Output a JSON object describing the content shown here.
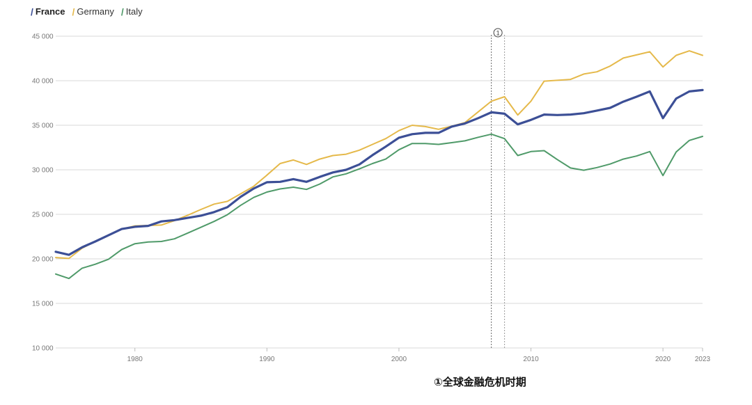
{
  "legend": [
    {
      "name": "France",
      "color": "#3c4f96"
    },
    {
      "name": "Germany",
      "color": "#e5b94a"
    },
    {
      "name": "Italy",
      "color": "#4f9a69"
    }
  ],
  "annotation_note": "①全球金融危机时期",
  "chart_data": {
    "type": "line",
    "title": "",
    "xlabel": "",
    "ylabel": "",
    "ylim": [
      10000,
      45000
    ],
    "xlim": [
      1974,
      2023
    ],
    "yticks": [
      {
        "value": 45000,
        "label": "45 000"
      },
      {
        "value": 40000,
        "label": "40 000"
      },
      {
        "value": 35000,
        "label": "35 000"
      },
      {
        "value": 30000,
        "label": "30 000"
      },
      {
        "value": 25000,
        "label": "25 000"
      },
      {
        "value": 20000,
        "label": "20 000"
      },
      {
        "value": 15000,
        "label": "15 000"
      },
      {
        "value": 10000,
        "label": "10 000"
      }
    ],
    "xticks": [
      {
        "value": 1980,
        "label": "1980"
      },
      {
        "value": 1990,
        "label": "1990"
      },
      {
        "value": 2000,
        "label": "2000"
      },
      {
        "value": 2010,
        "label": "2010"
      },
      {
        "value": 2020,
        "label": "2020"
      },
      {
        "value": 2023,
        "label": "2023"
      }
    ],
    "grid": true,
    "legend_position": "top-left",
    "x": [
      1974,
      1975,
      1976,
      1977,
      1978,
      1979,
      1980,
      1981,
      1982,
      1983,
      1984,
      1985,
      1986,
      1987,
      1988,
      1989,
      1990,
      1991,
      1992,
      1993,
      1994,
      1995,
      1996,
      1997,
      1998,
      1999,
      2000,
      2001,
      2002,
      2003,
      2004,
      2005,
      2006,
      2007,
      2008,
      2009,
      2010,
      2011,
      2012,
      2013,
      2014,
      2015,
      2016,
      2017,
      2018,
      2019,
      2020,
      2021,
      2022,
      2023
    ],
    "series": [
      {
        "name": "France",
        "color": "#3c4f96",
        "width": 3.2,
        "values": [
          20800,
          20450,
          21300,
          21950,
          22650,
          23350,
          23600,
          23700,
          24200,
          24350,
          24600,
          24850,
          25250,
          25800,
          26950,
          27900,
          28600,
          28650,
          28950,
          28650,
          29200,
          29700,
          30000,
          30600,
          31650,
          32600,
          33600,
          34000,
          34150,
          34150,
          34850,
          35200,
          35800,
          36450,
          36300,
          35100,
          35600,
          36200,
          36150,
          36200,
          36350,
          36650,
          36950,
          37650,
          38200,
          38800,
          35800,
          38000,
          38800,
          38950
        ]
      },
      {
        "name": "Germany",
        "color": "#e5b94a",
        "width": 2,
        "values": [
          20150,
          20050,
          21200,
          21950,
          22650,
          23350,
          23700,
          23750,
          23800,
          24300,
          24900,
          25550,
          26150,
          26450,
          27300,
          28150,
          29400,
          30700,
          31100,
          30600,
          31200,
          31600,
          31750,
          32200,
          32850,
          33500,
          34400,
          35000,
          34850,
          34550,
          34900,
          35300,
          36500,
          37700,
          38200,
          36150,
          37700,
          39950,
          40050,
          40150,
          40750,
          41000,
          41650,
          42550,
          42900,
          43250,
          41550,
          42850,
          43350,
          42850
        ]
      },
      {
        "name": "Italy",
        "color": "#4f9a69",
        "width": 2,
        "values": [
          18300,
          17800,
          18950,
          19400,
          19950,
          21050,
          21700,
          21900,
          21950,
          22250,
          22900,
          23550,
          24200,
          24950,
          26000,
          26900,
          27500,
          27850,
          28050,
          27800,
          28400,
          29200,
          29550,
          30100,
          30700,
          31200,
          32250,
          32950,
          32950,
          32850,
          33050,
          33250,
          33650,
          34000,
          33500,
          31600,
          32050,
          32150,
          31150,
          30200,
          29950,
          30250,
          30650,
          31200,
          31550,
          32050,
          29350,
          32000,
          33300,
          33750
        ]
      }
    ],
    "annotations": [
      {
        "label": "1",
        "x_start": 2007,
        "x_end": 2008
      }
    ]
  }
}
